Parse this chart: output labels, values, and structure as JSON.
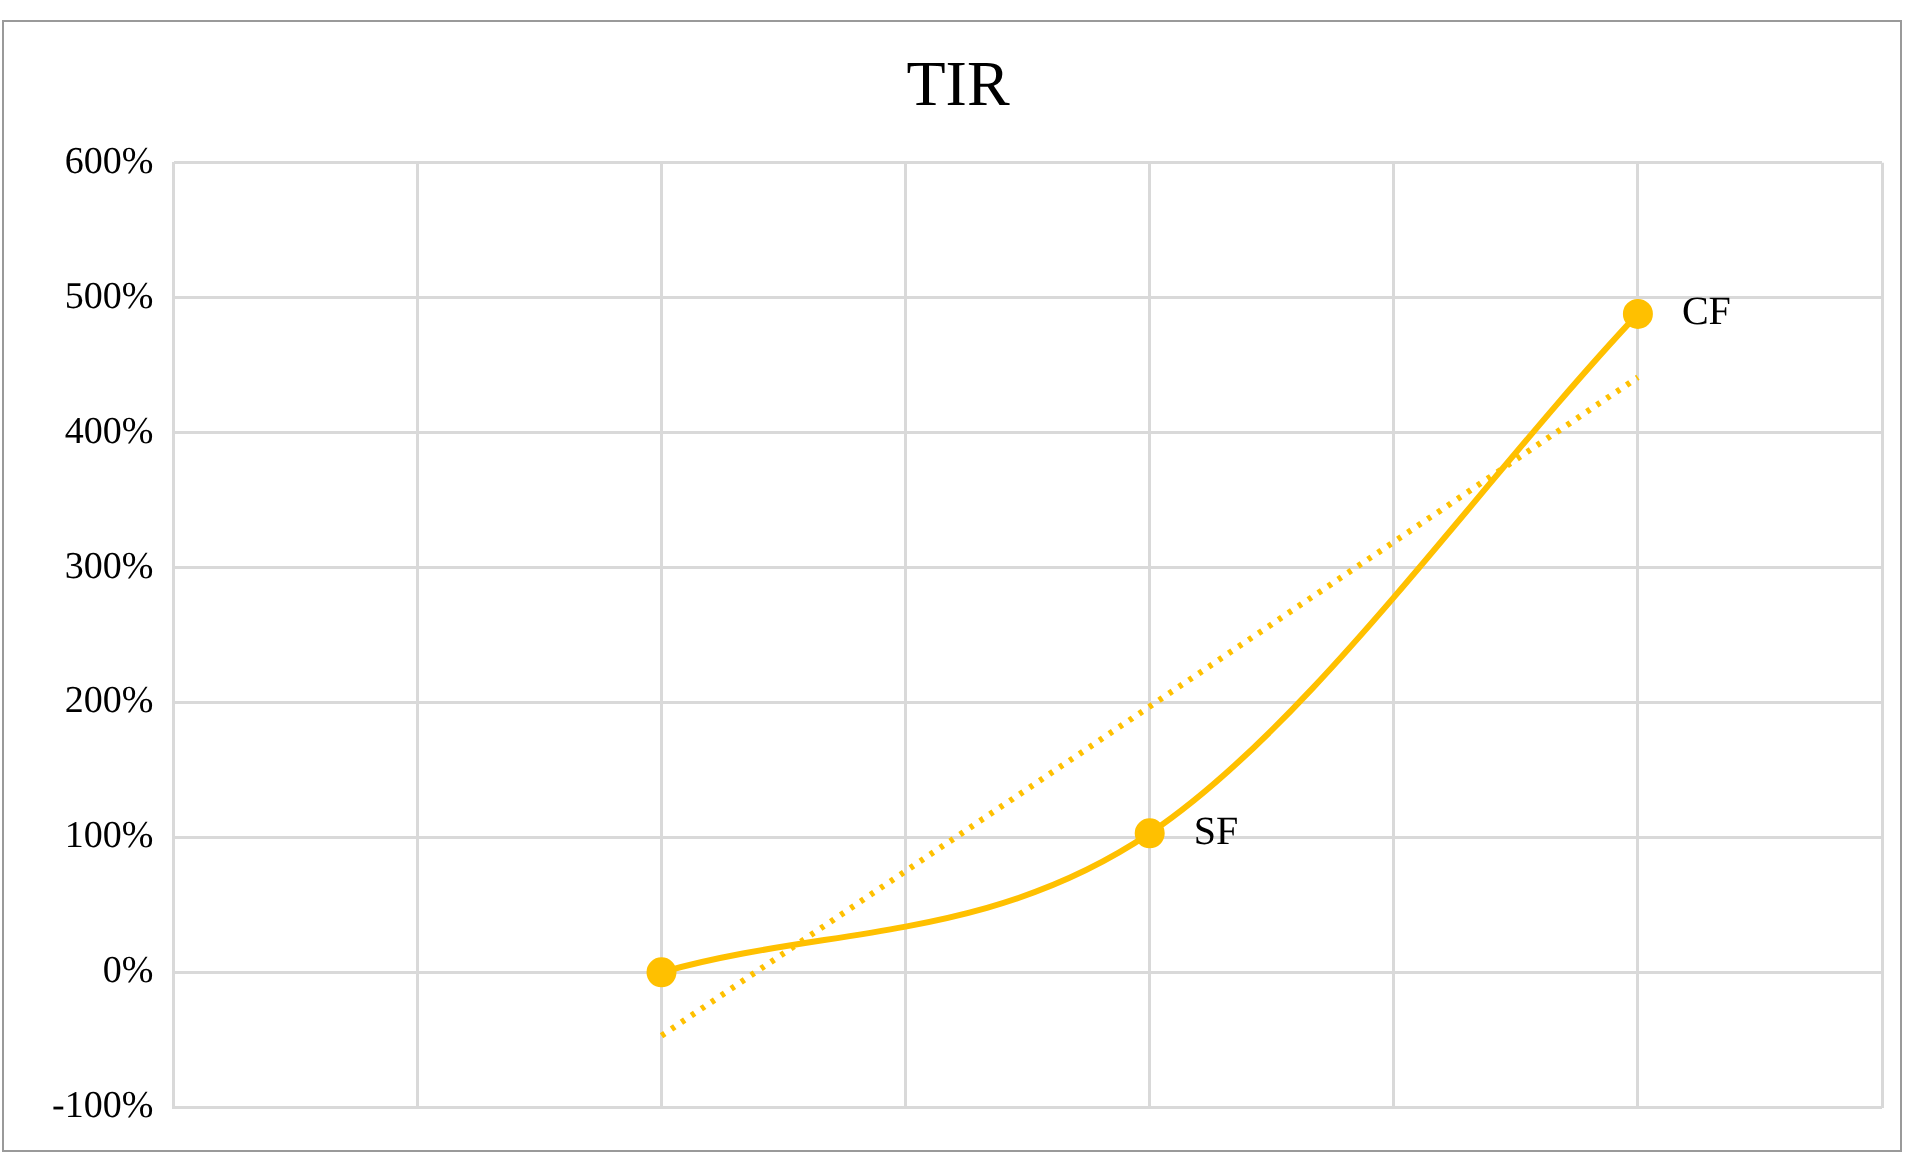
{
  "chart_data": {
    "type": "line",
    "title": "TIR",
    "categories": [
      null,
      null,
      null,
      null,
      null,
      null,
      null,
      null
    ],
    "ylim": [
      -100,
      600
    ],
    "yticks": [
      {
        "value": -100,
        "label": "-100%"
      },
      {
        "value": 0,
        "label": "0%"
      },
      {
        "value": 100,
        "label": "100%"
      },
      {
        "value": 200,
        "label": "200%"
      },
      {
        "value": 300,
        "label": "300%"
      },
      {
        "value": 400,
        "label": "400%"
      },
      {
        "value": 500,
        "label": "500%"
      },
      {
        "value": 600,
        "label": "600%"
      }
    ],
    "tick_labels": "y",
    "grid": true,
    "series": [
      {
        "color": "#ffc000",
        "values": [
          null,
          null,
          0,
          null,
          103,
          null,
          488,
          null
        ],
        "marker": "circle",
        "line_style": "solid"
      },
      {
        "color": "#ffc000",
        "values": [
          null,
          null,
          -47,
          75,
          197,
          319,
          441,
          null
        ],
        "marker": "none",
        "line_style": "dotted"
      }
    ],
    "annotations": [
      "SF",
      "CF"
    ]
  }
}
